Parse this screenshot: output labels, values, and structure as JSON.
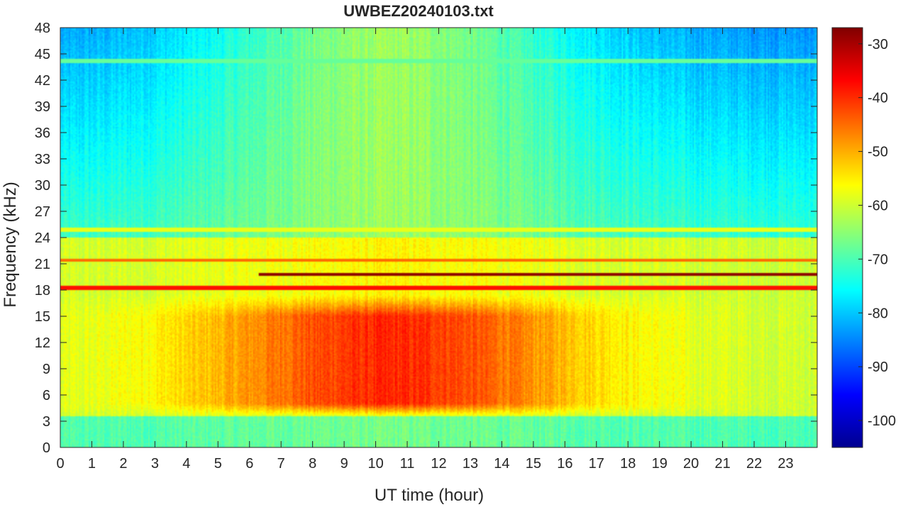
{
  "chart_data": {
    "type": "heatmap",
    "title": "UWBEZ20240103.txt",
    "xlabel": "UT time (hour)",
    "ylabel": "Frequency (kHz)",
    "xlim": [
      0,
      24
    ],
    "ylim": [
      0,
      48
    ],
    "x_ticks": [
      "0",
      "1",
      "2",
      "3",
      "4",
      "5",
      "6",
      "7",
      "8",
      "9",
      "10",
      "11",
      "12",
      "13",
      "14",
      "15",
      "16",
      "17",
      "18",
      "19",
      "20",
      "21",
      "22",
      "23"
    ],
    "y_ticks": [
      "0",
      "3",
      "6",
      "9",
      "12",
      "15",
      "18",
      "21",
      "24",
      "27",
      "30",
      "33",
      "36",
      "39",
      "42",
      "45",
      "48"
    ],
    "colorbar": {
      "colormap": "jet",
      "range": [
        -105,
        -27
      ],
      "ticks": [
        "-100",
        "-90",
        "-80",
        "-70",
        "-60",
        "-50",
        "-40",
        "-30"
      ]
    },
    "features": {
      "intense_band_khz": [
        3.5,
        16
      ],
      "intense_band_peak_hour": 10.5,
      "narrowband_lines": [
        {
          "freq_khz": 19.8,
          "start_hour": 6.3,
          "end_hour": 24,
          "level_db": -28
        },
        {
          "freq_khz": 18.3,
          "start_hour": 0,
          "end_hour": 24,
          "level_db": -38
        },
        {
          "freq_khz": 21.4,
          "start_hour": 0,
          "end_hour": 24,
          "level_db": -45
        },
        {
          "freq_khz": 24.9,
          "start_hour": 0,
          "end_hour": 24,
          "level_db": -58
        },
        {
          "freq_khz": 44.2,
          "start_hour": 0,
          "end_hour": 24,
          "level_db": -68
        }
      ]
    }
  }
}
